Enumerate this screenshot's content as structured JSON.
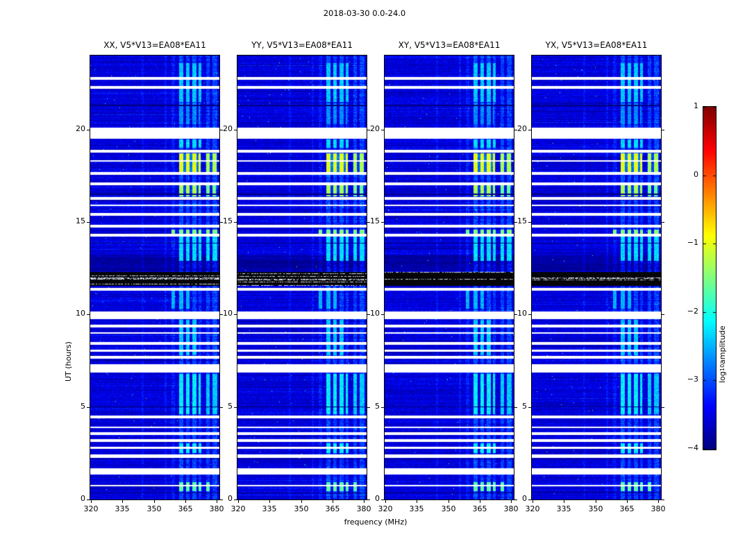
{
  "figure": {
    "title": "2018-03-30 0.0-24.0",
    "xlabel": "frequency (MHz)",
    "ylabel": "UT (hours)",
    "colorbar_label_pre": "log",
    "colorbar_label_sub": "10",
    "colorbar_label_post": " amplitude"
  },
  "chart_data": {
    "type": "heatmap",
    "title": "2018-03-30 0.0-24.0",
    "xlabel": "frequency (MHz)",
    "ylabel": "UT (hours)",
    "colormap": "jet",
    "value_range_log10": [
      -4,
      1
    ],
    "x_range_mhz": [
      319.6,
      381.3
    ],
    "x_ticks": [
      320,
      335,
      350,
      365,
      380
    ],
    "y_range_hours": [
      0,
      24
    ],
    "y_ticks": [
      0,
      5,
      10,
      15,
      20
    ],
    "background_level_log10": -3.55,
    "colorbar": {
      "ticks": [
        1,
        0,
        -1,
        -2,
        -3,
        -4
      ],
      "tick_labels": [
        "1",
        "0",
        "−1",
        "−2",
        "−3",
        "−4"
      ]
    },
    "panels": [
      {
        "key": "XX",
        "title": "XX, V5*V13=EA08*EA11"
      },
      {
        "key": "YY",
        "title": "YY, V5*V13=EA08*EA11"
      },
      {
        "key": "XY",
        "title": "XY, V5*V13=EA08*EA11"
      },
      {
        "key": "YX",
        "title": "YX, V5*V13=EA08*EA11"
      }
    ],
    "rfi_bands_mhz": [
      {
        "f": [
          344.0,
          345.2
        ],
        "boost": 0.18
      },
      {
        "f": [
          355.0,
          356.2
        ],
        "boost": 0.22
      },
      {
        "f": [
          358.5,
          360.0
        ],
        "boost": 0.25
      },
      {
        "f": [
          362.0,
          364.2
        ],
        "boost": 0.5
      },
      {
        "f": [
          365.5,
          367.2
        ],
        "boost": 0.42
      },
      {
        "f": [
          368.5,
          370.2
        ],
        "boost": 0.46
      },
      {
        "f": [
          371.2,
          372.6
        ],
        "boost": 0.36
      },
      {
        "f": [
          375.0,
          376.6
        ],
        "boost": 0.42
      },
      {
        "f": [
          378.0,
          380.2
        ],
        "boost": 0.46
      }
    ],
    "flagged_rows_ut": [
      [
        0.7,
        0.8
      ],
      [
        1.35,
        1.7
      ],
      [
        2.25,
        2.45
      ],
      [
        2.75,
        2.85
      ],
      [
        3.1,
        3.25
      ],
      [
        3.5,
        3.65
      ],
      [
        3.85,
        3.95
      ],
      [
        4.4,
        4.55
      ],
      [
        6.85,
        7.3
      ],
      [
        7.6,
        7.75
      ],
      [
        8.0,
        8.1
      ],
      [
        8.35,
        8.5
      ],
      [
        8.95,
        9.05
      ],
      [
        9.3,
        9.45
      ],
      [
        9.75,
        10.15
      ],
      [
        11.3,
        11.45
      ],
      [
        14.2,
        14.35
      ],
      [
        14.7,
        14.85
      ],
      [
        15.35,
        15.5
      ],
      [
        15.85,
        15.95
      ],
      [
        16.2,
        16.35
      ],
      [
        17.0,
        17.15
      ],
      [
        17.55,
        17.7
      ],
      [
        18.25,
        18.35
      ],
      [
        18.75,
        18.9
      ],
      [
        19.5,
        20.1
      ],
      [
        22.2,
        22.35
      ],
      [
        22.7,
        22.85
      ]
    ],
    "black_rows_ut": [
      [
        11.55,
        12.3
      ]
    ],
    "dark_rows_ut": [
      [
        12.35,
        13.2
      ]
    ],
    "dark_lines_ut": [
      0.35,
      2.2,
      5.0,
      13.85,
      16.5,
      21.3
    ],
    "bright_events": [
      {
        "ut": [
          0.45,
          0.95
        ],
        "f": [
          362.0,
          378.0
        ],
        "level": -2.0
      },
      {
        "ut": [
          2.5,
          3.05
        ],
        "f": [
          362.0,
          375.0
        ],
        "level": -2.5
      },
      {
        "ut": [
          4.6,
          6.8
        ],
        "f": [
          360.0,
          372.5
        ],
        "level": -2.5
      },
      {
        "ut": [
          4.6,
          6.8
        ],
        "f": [
          374.5,
          380.5
        ],
        "level": -2.7
      },
      {
        "ut": [
          7.8,
          9.7
        ],
        "f": [
          361.0,
          371.0
        ],
        "level": -2.7
      },
      {
        "ut": [
          10.3,
          11.3
        ],
        "f": [
          357.0,
          368.0
        ],
        "level": -2.8
      },
      {
        "ut": [
          12.9,
          14.2
        ],
        "f": [
          360.0,
          380.5
        ],
        "level": -2.6
      },
      {
        "ut": [
          14.35,
          14.6
        ],
        "f": [
          358.0,
          381.0
        ],
        "level": -1.8
      },
      {
        "ut": [
          16.4,
          17.0
        ],
        "f": [
          362.0,
          372.5
        ],
        "level": -1.6
      },
      {
        "ut": [
          16.4,
          17.0
        ],
        "f": [
          374.5,
          379.5
        ],
        "level": -1.9
      },
      {
        "ut": [
          17.7,
          18.7
        ],
        "f": [
          362.0,
          372.5
        ],
        "level": -1.3
      },
      {
        "ut": [
          17.7,
          18.7
        ],
        "f": [
          374.5,
          380.0
        ],
        "level": -1.6
      },
      {
        "ut": [
          19.0,
          19.45
        ],
        "f": [
          362.0,
          374.0
        ],
        "level": -2.6
      },
      {
        "ut": [
          20.3,
          21.4
        ],
        "f": [
          362.0,
          372.0
        ],
        "level": -3.0
      },
      {
        "ut": [
          21.5,
          23.6
        ],
        "f": [
          360.0,
          375.0
        ],
        "level": -2.7
      }
    ]
  }
}
